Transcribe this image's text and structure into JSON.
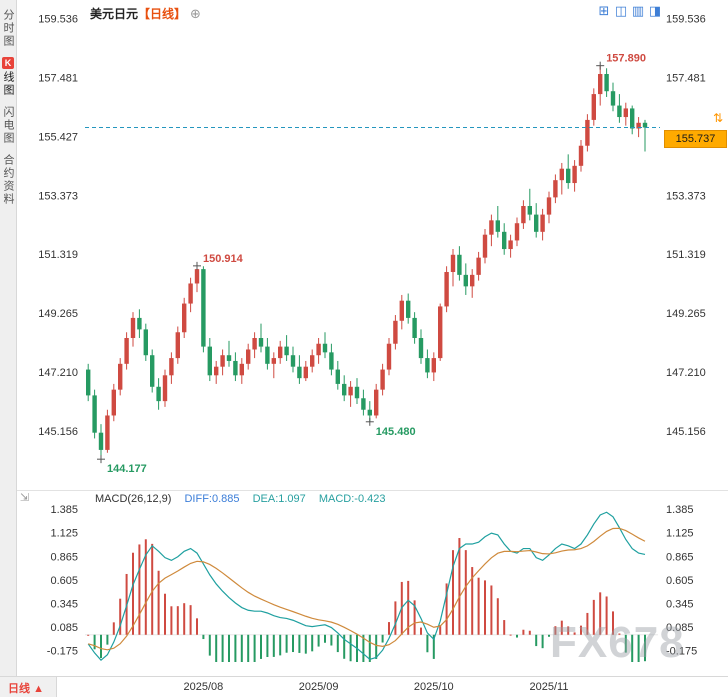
{
  "sidebar": {
    "items": [
      {
        "label": "分时图"
      },
      {
        "label": "线图",
        "badge": "K",
        "selected": true
      },
      {
        "label": "闪电图"
      },
      {
        "label": "合约资料"
      }
    ]
  },
  "header": {
    "symbol": "美元日元",
    "period_tag": "【日线】",
    "add_icon": "⊕"
  },
  "layout_icons": [
    {
      "name": "layout-grid-icon",
      "glyph": "⊞"
    },
    {
      "name": "layout-two-pane-icon",
      "glyph": "◫"
    },
    {
      "name": "layout-rows-icon",
      "glyph": "▥"
    },
    {
      "name": "layout-half-pane-icon",
      "glyph": "◨"
    }
  ],
  "price_tag": {
    "value": "155.737"
  },
  "price_handle_icon": "⇅",
  "resize_icon": "⇲",
  "macd_legend": {
    "title": "MACD(26,12,9)",
    "diff": "DIFF:0.885",
    "dea": "DEA:1.097",
    "macd": "MACD:-0.423"
  },
  "footer": {
    "period": "日线",
    "arrow": "▲"
  },
  "watermark": "FX678",
  "theme": {
    "up": "#cf4a41",
    "down": "#269a62",
    "price_line": "#2596be",
    "diff_line": "#1fa0a0",
    "dea_line": "#cf8a3c",
    "diff_text": "#3b7dd8",
    "dea_text": "#28a0a0",
    "tag_bg": "#ffaa00",
    "axis_text": "#333333",
    "period_tag_color": "#e8500f",
    "badge_red": "#e8433a"
  },
  "chart_data": {
    "type": "candlestick",
    "instrument": "美元日元",
    "period": "日线",
    "price_ticks": [
      "159.536",
      "157.481",
      "155.427",
      "153.373",
      "151.319",
      "149.265",
      "147.210",
      "145.156"
    ],
    "price_range": [
      143.8,
      159.9
    ],
    "current_price": 155.737,
    "current_price_label": "155.737",
    "x_labels": [
      {
        "text": "2025/08",
        "index": 18
      },
      {
        "text": "2025/09",
        "index": 36
      },
      {
        "text": "2025/10",
        "index": 54
      },
      {
        "text": "2025/11",
        "index": 72
      }
    ],
    "annotations": [
      {
        "index": 2,
        "price": 144.177,
        "text": "144.177",
        "pos": "below",
        "color": "down"
      },
      {
        "index": 17,
        "price": 150.914,
        "text": "150.914",
        "pos": "above",
        "color": "up"
      },
      {
        "index": 44,
        "price": 145.48,
        "text": "145.480",
        "pos": "below",
        "color": "down"
      },
      {
        "index": 80,
        "price": 157.89,
        "text": "157.890",
        "pos": "above",
        "color": "up"
      }
    ],
    "ohlc": [
      [
        147.3,
        147.5,
        146.2,
        146.4
      ],
      [
        146.4,
        146.6,
        144.9,
        145.1
      ],
      [
        145.1,
        145.4,
        144.177,
        144.5
      ],
      [
        144.5,
        145.9,
        144.4,
        145.7
      ],
      [
        145.7,
        146.8,
        145.5,
        146.6
      ],
      [
        146.6,
        147.7,
        146.4,
        147.5
      ],
      [
        147.5,
        148.6,
        147.3,
        148.4
      ],
      [
        148.4,
        149.3,
        148.1,
        149.1
      ],
      [
        149.1,
        149.4,
        148.4,
        148.7
      ],
      [
        148.7,
        148.9,
        147.6,
        147.8
      ],
      [
        147.8,
        148.0,
        146.5,
        146.7
      ],
      [
        146.7,
        147.0,
        145.9,
        146.2
      ],
      [
        146.2,
        147.3,
        146.0,
        147.1
      ],
      [
        147.1,
        147.9,
        146.8,
        147.7
      ],
      [
        147.7,
        148.8,
        147.5,
        148.6
      ],
      [
        148.6,
        149.8,
        148.4,
        149.6
      ],
      [
        149.6,
        150.5,
        149.3,
        150.3
      ],
      [
        150.3,
        150.914,
        150.0,
        150.8
      ],
      [
        150.8,
        150.9,
        147.9,
        148.1
      ],
      [
        148.1,
        148.4,
        146.9,
        147.1
      ],
      [
        147.1,
        147.6,
        146.8,
        147.4
      ],
      [
        147.4,
        148.0,
        147.1,
        147.8
      ],
      [
        147.8,
        148.3,
        147.4,
        147.6
      ],
      [
        147.6,
        147.9,
        146.9,
        147.1
      ],
      [
        147.1,
        147.7,
        146.8,
        147.5
      ],
      [
        147.5,
        148.2,
        147.3,
        148.0
      ],
      [
        148.0,
        148.6,
        147.7,
        148.4
      ],
      [
        148.4,
        148.9,
        147.9,
        148.1
      ],
      [
        148.1,
        148.4,
        147.3,
        147.5
      ],
      [
        147.5,
        147.9,
        147.0,
        147.7
      ],
      [
        147.7,
        148.3,
        147.5,
        148.1
      ],
      [
        148.1,
        148.5,
        147.6,
        147.8
      ],
      [
        147.8,
        148.1,
        147.2,
        147.4
      ],
      [
        147.4,
        147.8,
        146.8,
        147.0
      ],
      [
        147.0,
        147.6,
        146.9,
        147.4
      ],
      [
        147.4,
        148.0,
        147.2,
        147.8
      ],
      [
        147.8,
        148.4,
        147.5,
        148.2
      ],
      [
        148.2,
        148.6,
        147.7,
        147.9
      ],
      [
        147.9,
        148.2,
        147.1,
        147.3
      ],
      [
        147.3,
        147.6,
        146.6,
        146.8
      ],
      [
        146.8,
        147.1,
        146.2,
        146.4
      ],
      [
        146.4,
        146.9,
        146.0,
        146.7
      ],
      [
        146.7,
        147.0,
        146.1,
        146.3
      ],
      [
        146.3,
        146.6,
        145.7,
        145.9
      ],
      [
        145.9,
        146.2,
        145.48,
        145.7
      ],
      [
        145.7,
        146.8,
        145.6,
        146.6
      ],
      [
        146.6,
        147.5,
        146.4,
        147.3
      ],
      [
        147.3,
        148.4,
        147.1,
        148.2
      ],
      [
        148.2,
        149.2,
        148.0,
        149.0
      ],
      [
        149.0,
        149.9,
        148.7,
        149.7
      ],
      [
        149.7,
        149.95,
        148.9,
        149.1
      ],
      [
        149.1,
        149.3,
        148.2,
        148.4
      ],
      [
        148.4,
        148.7,
        147.5,
        147.7
      ],
      [
        147.7,
        148.0,
        147.0,
        147.2
      ],
      [
        147.2,
        147.9,
        146.9,
        147.7
      ],
      [
        147.7,
        149.6,
        147.6,
        149.5
      ],
      [
        149.5,
        150.9,
        149.3,
        150.7
      ],
      [
        150.7,
        151.5,
        150.2,
        151.3
      ],
      [
        151.3,
        151.6,
        150.4,
        150.6
      ],
      [
        150.6,
        151.0,
        149.9,
        150.2
      ],
      [
        150.2,
        150.8,
        149.8,
        150.6
      ],
      [
        150.6,
        151.4,
        150.4,
        151.2
      ],
      [
        151.2,
        152.2,
        151.0,
        152.0
      ],
      [
        152.0,
        152.7,
        151.6,
        152.5
      ],
      [
        152.5,
        153.0,
        151.9,
        152.1
      ],
      [
        152.1,
        152.4,
        151.3,
        151.5
      ],
      [
        151.5,
        152.0,
        151.2,
        151.8
      ],
      [
        151.8,
        152.6,
        151.6,
        152.4
      ],
      [
        152.4,
        153.2,
        152.2,
        153.0
      ],
      [
        153.0,
        153.6,
        152.5,
        152.7
      ],
      [
        152.7,
        153.1,
        151.9,
        152.1
      ],
      [
        152.1,
        152.9,
        151.8,
        152.7
      ],
      [
        152.7,
        153.5,
        152.4,
        153.3
      ],
      [
        153.3,
        154.1,
        153.1,
        153.9
      ],
      [
        153.9,
        154.5,
        153.4,
        154.3
      ],
      [
        154.3,
        154.8,
        153.6,
        153.8
      ],
      [
        153.8,
        154.6,
        153.5,
        154.4
      ],
      [
        154.4,
        155.3,
        154.2,
        155.1
      ],
      [
        155.1,
        156.2,
        154.9,
        156.0
      ],
      [
        156.0,
        157.1,
        155.8,
        156.9
      ],
      [
        156.9,
        157.89,
        156.5,
        157.6
      ],
      [
        157.6,
        157.8,
        156.8,
        157.0
      ],
      [
        157.0,
        157.3,
        156.3,
        156.5
      ],
      [
        156.5,
        156.9,
        155.9,
        156.1
      ],
      [
        156.1,
        156.6,
        155.8,
        156.4
      ],
      [
        156.4,
        156.5,
        155.5,
        155.7
      ],
      [
        155.7,
        156.1,
        155.4,
        155.9
      ],
      [
        155.9,
        156.0,
        154.9,
        155.737
      ]
    ],
    "macd": {
      "params": "(26,12,9)",
      "fast": 12,
      "slow": 26,
      "signal": 9,
      "last_values": {
        "diff": 0.885,
        "dea": 1.097,
        "macd": -0.423
      },
      "ticks": [
        "1.385",
        "1.125",
        "0.865",
        "0.605",
        "0.345",
        "0.085",
        "-0.175"
      ],
      "range": [
        -0.3,
        1.43
      ],
      "dea_formula": "EMA9(diff)",
      "hist_formula": "2*(DIFF-DEA)",
      "diff": [
        -0.1,
        -0.2,
        -0.28,
        -0.22,
        -0.08,
        0.1,
        0.32,
        0.55,
        0.72,
        0.88,
        0.98,
        0.92,
        0.85,
        0.82,
        0.86,
        0.92,
        0.95,
        0.9,
        0.78,
        0.66,
        0.56,
        0.48,
        0.41,
        0.35,
        0.3,
        0.27,
        0.26,
        0.26,
        0.24,
        0.21,
        0.19,
        0.18,
        0.16,
        0.13,
        0.1,
        0.09,
        0.1,
        0.11,
        0.08,
        0.02,
        -0.05,
        -0.1,
        -0.15,
        -0.21,
        -0.27,
        -0.25,
        -0.17,
        -0.04,
        0.12,
        0.3,
        0.38,
        0.32,
        0.18,
        0.02,
        -0.05,
        0.15,
        0.45,
        0.75,
        0.95,
        1.0,
        1.0,
        1.02,
        1.08,
        1.12,
        1.1,
        1.0,
        0.92,
        0.9,
        0.95,
        0.95,
        0.85,
        0.82,
        0.88,
        0.95,
        1.0,
        0.98,
        0.95,
        1.0,
        1.1,
        1.22,
        1.32,
        1.35,
        1.3,
        1.18,
        1.05,
        0.95,
        0.9,
        0.885
      ]
    }
  }
}
